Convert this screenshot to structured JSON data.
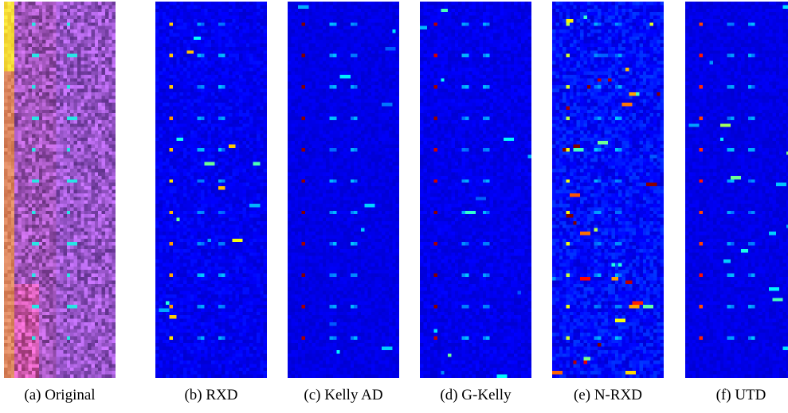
{
  "figure": {
    "panels": [
      {
        "id": "original",
        "caption": "(a) Original",
        "type": "rgb-hsi"
      },
      {
        "id": "rxd",
        "caption": "(b) RXD",
        "type": "jet-map"
      },
      {
        "id": "kelly-ad",
        "caption": "(c) Kelly AD",
        "type": "jet-map"
      },
      {
        "id": "g-kelly",
        "caption": "(d) G-Kelly",
        "type": "jet-map"
      },
      {
        "id": "n-rxd",
        "caption": "(e) N-RXD",
        "type": "jet-map"
      },
      {
        "id": "utd",
        "caption": "(f) UTD",
        "type": "jet-map"
      }
    ],
    "colormap": "jet",
    "background_color": "#00008b"
  }
}
